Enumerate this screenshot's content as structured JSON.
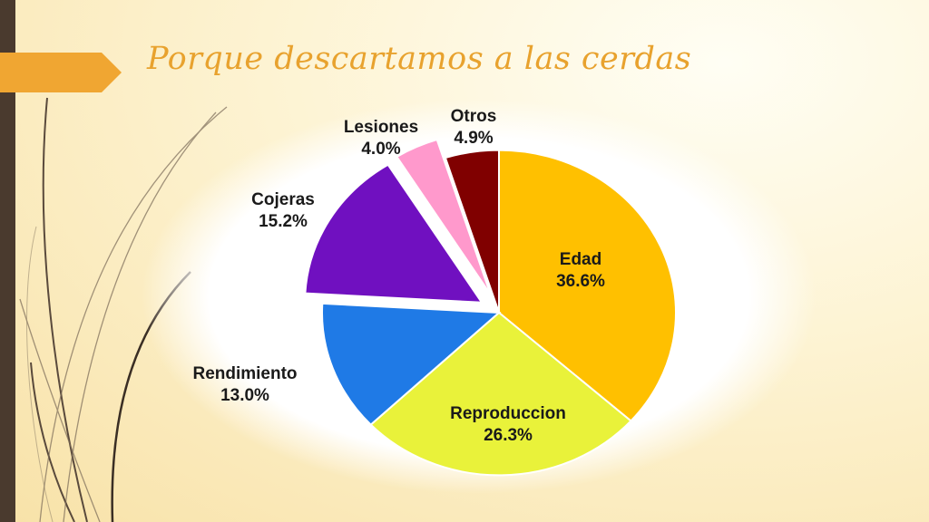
{
  "slide": {
    "title": "Porque descartamos a las cerdas",
    "colors": {
      "title": "#e8a22e",
      "accent_bar": "#4a3a2e",
      "arrow": "#f0a632"
    }
  },
  "chart_data": {
    "type": "pie",
    "title": "",
    "slices": [
      {
        "label": "Edad",
        "value": 36.6,
        "value_label": "36.6%",
        "color": "#ffc000",
        "exploded": false
      },
      {
        "label": "Reproduccion",
        "value": 26.3,
        "value_label": "26.3%",
        "color": "#e9f23a",
        "exploded": false
      },
      {
        "label": "Rendimiento",
        "value": 13.0,
        "value_label": "13.0%",
        "color": "#1f7ae6",
        "exploded": false
      },
      {
        "label": "Cojeras",
        "value": 15.2,
        "value_label": "15.2%",
        "color": "#7010c0",
        "exploded": true
      },
      {
        "label": "Lesiones",
        "value": 4.0,
        "value_label": "4.0%",
        "color": "#ff99cc",
        "exploded": true
      },
      {
        "label": "Otros",
        "value": 4.9,
        "value_label": "4.9%",
        "color": "#800000",
        "exploded": false
      }
    ],
    "legend": "none",
    "labels": "on-chart"
  }
}
